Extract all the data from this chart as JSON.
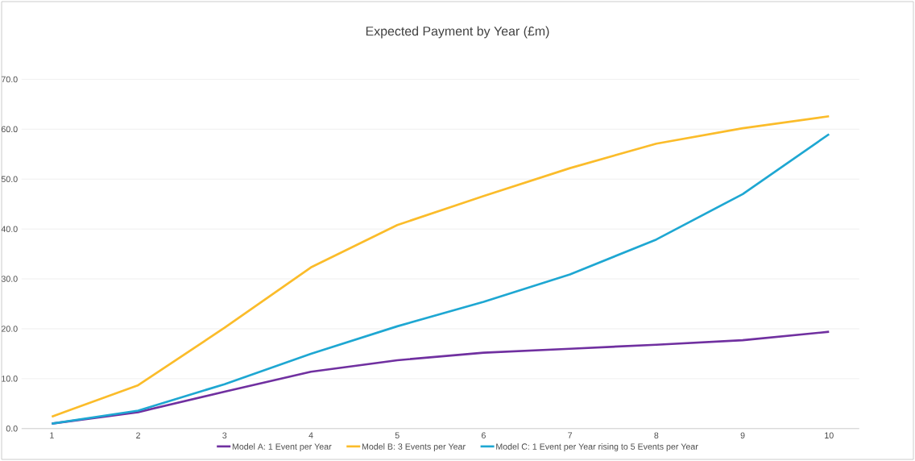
{
  "chart_data": {
    "type": "line",
    "title": "Expected Payment by Year (£m)",
    "categories": [
      "1",
      "2",
      "3",
      "4",
      "5",
      "6",
      "7",
      "8",
      "9",
      "10"
    ],
    "series": [
      {
        "name": "Model A: 1 Event per Year",
        "color": "#7030a0",
        "values": [
          1.0,
          3.3,
          7.4,
          11.4,
          13.7,
          15.2,
          16.0,
          16.8,
          17.7,
          19.4
        ]
      },
      {
        "name": "Model B: 3 Events per Year",
        "color": "#fbbc2a",
        "values": [
          2.4,
          8.7,
          20.2,
          32.3,
          40.8,
          46.6,
          52.2,
          57.1,
          60.2,
          62.6
        ]
      },
      {
        "name": "Model C: 1 Event per Year rising to 5 Events per Year",
        "color": "#1ea7d2",
        "values": [
          1.0,
          3.6,
          8.9,
          15.0,
          20.5,
          25.4,
          30.9,
          37.9,
          47.0,
          59.0
        ]
      }
    ],
    "ylim": [
      0,
      70
    ],
    "yticks": [
      {
        "value": 0,
        "label": "0.0"
      },
      {
        "value": 10,
        "label": "10.0"
      },
      {
        "value": 20,
        "label": "20.0"
      },
      {
        "value": 30,
        "label": "30.0"
      },
      {
        "value": 40,
        "label": "40.0"
      },
      {
        "value": 50,
        "label": "50.0"
      },
      {
        "value": 60,
        "label": "60.0"
      },
      {
        "value": 70,
        "label": "70.0"
      }
    ],
    "grid": "y",
    "legend": "bottom",
    "marker": "none",
    "line_style": "solid"
  }
}
